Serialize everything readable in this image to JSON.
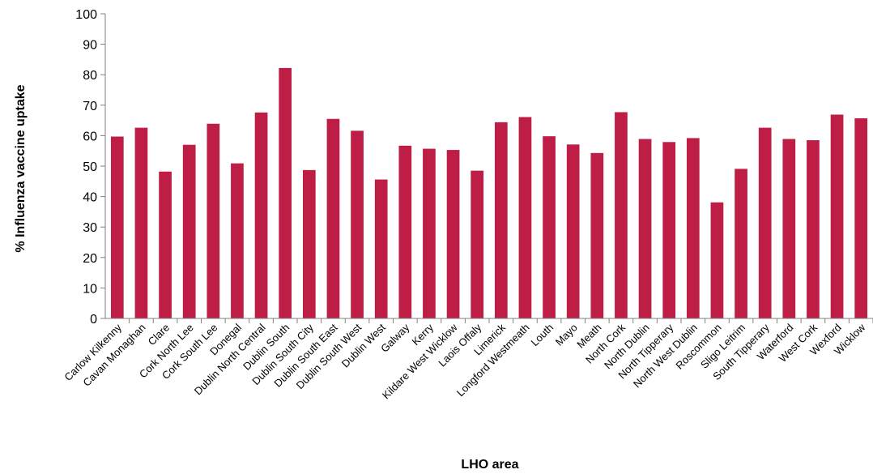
{
  "chart_data": {
    "type": "bar",
    "title": "",
    "xlabel": "LHO area",
    "ylabel": "% Influenza vaccine uptake",
    "ylim": [
      0,
      100
    ],
    "yticks": [
      0,
      10,
      20,
      30,
      40,
      50,
      60,
      70,
      80,
      90,
      100
    ],
    "grid": false,
    "legend": "none",
    "bar_color": "#be1e45",
    "categories": [
      "Carlow Kilkenny",
      "Cavan Monaghan",
      "Clare",
      "Cork North Lee",
      "Cork South Lee",
      "Donegal",
      "Dublin North Central",
      "Dublin South",
      "Dublin South City",
      "Dublin South East",
      "Dublin South West",
      "Dublin West",
      "Galway",
      "Kerry",
      "Kildare West Wicklow",
      "Laois Offaly",
      "Limerick",
      "Longford Westmeath",
      "Louth",
      "Mayo",
      "Meath",
      "North Cork",
      "North Dublin",
      "North Tipperary",
      "North West Dublin",
      "Roscommon",
      "Sligo Leitrim",
      "South Tipperary",
      "Waterford",
      "West Cork",
      "Wexford",
      "Wicklow"
    ],
    "values": [
      59.7,
      62.6,
      48.2,
      57.0,
      63.9,
      50.9,
      67.6,
      82.2,
      48.7,
      65.5,
      61.6,
      45.6,
      56.7,
      55.7,
      55.3,
      48.5,
      64.4,
      66.1,
      59.8,
      57.1,
      54.3,
      67.7,
      58.9,
      57.9,
      59.2,
      38.1,
      49.1,
      62.6,
      58.9,
      58.5,
      66.9,
      65.7
    ]
  }
}
